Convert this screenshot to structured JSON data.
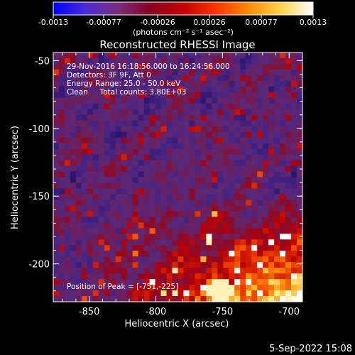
{
  "colorbar": {
    "tick_labels": [
      "-0.0013",
      "-0.00077",
      "-0.00026",
      "0.00026",
      "0.00077",
      "0.0013"
    ],
    "units": "(photons cm⁻² s⁻¹ asec⁻²)",
    "stops": [
      "#0000ff",
      "#4b2bd6",
      "#7a2c7a",
      "#8a0020",
      "#c40000",
      "#ff3300",
      "#ff8a00",
      "#ffd24a",
      "#ffffff"
    ]
  },
  "plot": {
    "title": "Reconstructed RHESSI Image",
    "xlabel": "Heliocentric X (arcsec)",
    "ylabel": "Heliocentric Y (arcsec)",
    "x_ticks": [
      "-850",
      "-800",
      "-750",
      "-700"
    ],
    "y_ticks": [
      "-50",
      "-100",
      "-150",
      "-200"
    ],
    "x_tick_values": [
      -850,
      -800,
      -750,
      -700
    ],
    "y_tick_values": [
      -50,
      -100,
      -150,
      -200
    ],
    "xlim": [
      -877,
      -690
    ],
    "ylim": [
      -228,
      -44
    ]
  },
  "annotations": {
    "line1": "29-Nov-2016 16:18:56.000 to 16:24:56.000",
    "line2": "Detectors: 3F 9F, Att 0",
    "line3": "Energy Range: 25.0 - 50.0 keV",
    "line4": "Clean     Total counts: 3.80E+03",
    "peak": "Position of Peak = [-751,-225]"
  },
  "footer": {
    "date": "5-Sep-2022 15:08"
  }
}
